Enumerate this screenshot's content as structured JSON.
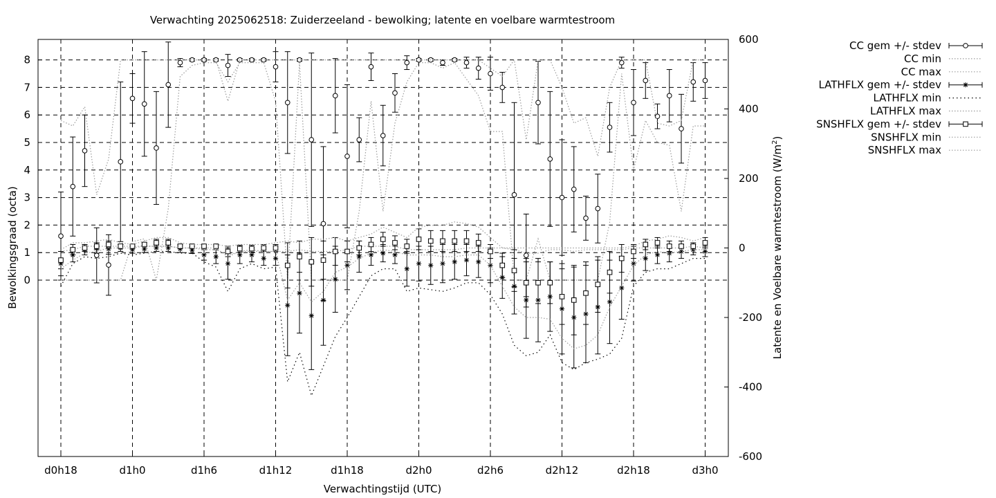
{
  "chart_data": {
    "type": "line",
    "title": "Verwachting 2025062518: Zuiderzeeland - bewolking; latente en voelbare warmtestroom",
    "xlabel": "Verwachtingstijd (UTC)",
    "ylabel": "Bewolkingsgraad (octa)",
    "y2label_main": "Latente en Voelbare warmtestroom (W/m",
    "y2label_sup": "2",
    "y2label_close": ")",
    "xlim": [
      18,
      72
    ],
    "ylim": [
      -6.3,
      8.8
    ],
    "y2lim": [
      -600,
      600
    ],
    "grid": true,
    "legend_position": "outside-right",
    "x_ticks": [
      {
        "value": 18,
        "label": "d0h18"
      },
      {
        "value": 24,
        "label": "d1h0"
      },
      {
        "value": 30,
        "label": "d1h6"
      },
      {
        "value": 36,
        "label": "d1h12"
      },
      {
        "value": 42,
        "label": "d1h18"
      },
      {
        "value": 48,
        "label": "d2h0"
      },
      {
        "value": 54,
        "label": "d2h6"
      },
      {
        "value": 60,
        "label": "d2h12"
      },
      {
        "value": 66,
        "label": "d2h18"
      },
      {
        "value": 72,
        "label": "d3h0"
      }
    ],
    "y_ticks": [
      {
        "value": 0,
        "label": "0"
      },
      {
        "value": 1,
        "label": "1"
      },
      {
        "value": 2,
        "label": "2"
      },
      {
        "value": 3,
        "label": "3"
      },
      {
        "value": 4,
        "label": "4"
      },
      {
        "value": 5,
        "label": "5"
      },
      {
        "value": 6,
        "label": "6"
      },
      {
        "value": 7,
        "label": "7"
      },
      {
        "value": 8,
        "label": "8"
      }
    ],
    "y2_ticks": [
      {
        "value": 600,
        "label": "600"
      },
      {
        "value": 400,
        "label": "400"
      },
      {
        "value": 200,
        "label": "200"
      },
      {
        "value": 0,
        "label": "0"
      },
      {
        "value": -200,
        "label": "-200"
      },
      {
        "value": -400,
        "label": "-400"
      },
      {
        "value": -600,
        "label": "-600"
      }
    ],
    "x": [
      18,
      19,
      20,
      21,
      22,
      23,
      24,
      25,
      26,
      27,
      28,
      29,
      30,
      31,
      32,
      33,
      34,
      35,
      36,
      37,
      38,
      39,
      40,
      41,
      42,
      43,
      44,
      45,
      46,
      47,
      48,
      49,
      50,
      51,
      52,
      53,
      54,
      55,
      56,
      57,
      58,
      59,
      60,
      61,
      62,
      63,
      64,
      65,
      66,
      67,
      68,
      69,
      70,
      71,
      72
    ],
    "series": [
      {
        "name": "CC gem +/- stdev",
        "axis": "y",
        "style": "errorbar",
        "marker": "circle",
        "values": [
          1.6,
          3.4,
          4.7,
          0.9,
          0.55,
          4.3,
          6.6,
          6.4,
          4.8,
          7.1,
          7.9,
          8.0,
          8.0,
          8.0,
          7.8,
          8.0,
          8.0,
          8.0,
          7.75,
          6.45,
          8.0,
          5.1,
          2.05,
          6.7,
          4.5,
          5.1,
          7.75,
          5.25,
          6.8,
          7.9,
          8.0,
          8.0,
          7.9,
          8.0,
          7.9,
          7.7,
          7.5,
          7.0,
          3.1,
          0.9,
          6.45,
          4.4,
          3.0,
          3.3,
          2.25,
          2.6,
          5.55,
          7.9,
          6.45,
          7.25,
          5.95,
          6.7,
          5.5,
          7.2,
          7.25
        ],
        "errors": [
          1.6,
          1.8,
          1.3,
          1.0,
          1.1,
          2.9,
          0.9,
          1.9,
          2.05,
          1.55,
          0.15,
          0.05,
          0.05,
          0.05,
          0.4,
          0.05,
          0.05,
          0.05,
          0.55,
          1.85,
          0.05,
          3.15,
          2.8,
          1.35,
          2.6,
          0.8,
          0.5,
          1.1,
          0.7,
          0.25,
          0.05,
          0.05,
          0.1,
          0.05,
          0.2,
          0.4,
          0.6,
          0.55,
          3.35,
          1.5,
          1.5,
          2.45,
          2.1,
          1.55,
          0.8,
          1.25,
          0.9,
          0.2,
          1.2,
          0.65,
          0.45,
          0.95,
          1.25,
          0.7,
          0.65
        ]
      },
      {
        "name": "CC min",
        "axis": "y",
        "style": "dotted-gray",
        "values": [
          0.0,
          0.0,
          0.0,
          0.0,
          0.0,
          0.0,
          1.4,
          1.5,
          0.0,
          2.6,
          7.4,
          7.8,
          7.9,
          7.9,
          7.2,
          7.9,
          7.9,
          7.9,
          6.5,
          0.0,
          7.9,
          0.0,
          0.0,
          0.0,
          0.0,
          2.5,
          6.5,
          2.5,
          5.7,
          7.2,
          7.9,
          7.9,
          7.7,
          7.9,
          7.3,
          6.7,
          5.4,
          5.4,
          0.0,
          0.0,
          1.5,
          0.0,
          0.0,
          0.0,
          0.0,
          0.0,
          2.1,
          7.5,
          4.0,
          5.8,
          5.0,
          4.9,
          2.5,
          5.6,
          5.6
        ]
      },
      {
        "name": "CC max",
        "axis": "y",
        "style": "dotted-gray",
        "values": [
          5.8,
          5.6,
          6.3,
          3.1,
          4.4,
          8.0,
          8.0,
          8.0,
          8.0,
          8.0,
          8.0,
          8.0,
          8.0,
          8.0,
          6.5,
          8.0,
          8.0,
          8.0,
          8.0,
          8.0,
          8.0,
          8.0,
          8.0,
          8.0,
          8.0,
          8.0,
          8.0,
          8.0,
          8.0,
          8.0,
          8.0,
          8.0,
          8.0,
          8.0,
          8.0,
          8.0,
          7.7,
          7.4,
          8.0,
          5.1,
          8.0,
          8.0,
          7.0,
          5.7,
          5.9,
          4.5,
          7.0,
          8.0,
          8.0,
          8.0,
          5.7,
          5.6,
          5.8,
          8.0,
          8.0
        ]
      },
      {
        "name": "LATHFLX gem +/- stdev",
        "axis": "y2",
        "style": "errorbar",
        "marker": "star",
        "values": [
          -45,
          -20,
          -5,
          0,
          -3,
          0,
          -5,
          -3,
          0,
          0,
          -3,
          -6,
          -20,
          -25,
          -45,
          -20,
          -20,
          -30,
          -30,
          -165,
          -130,
          -195,
          -150,
          -90,
          -50,
          -25,
          -20,
          -15,
          -20,
          -60,
          -45,
          -50,
          -45,
          -40,
          -35,
          -40,
          -50,
          -85,
          -110,
          -150,
          -150,
          -140,
          -175,
          -200,
          -190,
          -170,
          -155,
          -115,
          -45,
          -30,
          -20,
          -15,
          -10,
          -5,
          -10
        ],
        "errors": [
          35,
          20,
          15,
          15,
          15,
          10,
          10,
          10,
          10,
          10,
          10,
          10,
          15,
          20,
          45,
          25,
          20,
          20,
          20,
          145,
          115,
          155,
          130,
          95,
          70,
          45,
          30,
          25,
          25,
          50,
          50,
          55,
          55,
          50,
          45,
          45,
          50,
          60,
          80,
          110,
          120,
          100,
          130,
          145,
          140,
          135,
          120,
          90,
          50,
          35,
          25,
          25,
          20,
          15,
          15
        ]
      },
      {
        "name": "LATHFLX min",
        "axis": "y2",
        "style": "dotted-black",
        "values": [
          -110,
          -45,
          -25,
          -30,
          -25,
          -15,
          -20,
          -15,
          -10,
          -10,
          -15,
          -15,
          -40,
          -55,
          -125,
          -60,
          -45,
          -60,
          -55,
          -385,
          -300,
          -425,
          -340,
          -255,
          -200,
          -140,
          -80,
          -60,
          -60,
          -125,
          -115,
          -120,
          -125,
          -115,
          -100,
          -100,
          -135,
          -190,
          -280,
          -310,
          -300,
          -250,
          -330,
          -350,
          -330,
          -320,
          -305,
          -260,
          -110,
          -70,
          -60,
          -60,
          -45,
          -30,
          -30
        ]
      },
      {
        "name": "LATHFLX max",
        "axis": "y2",
        "style": "dotted-gray",
        "values": [
          -10,
          -5,
          5,
          5,
          5,
          5,
          5,
          5,
          5,
          5,
          0,
          0,
          -5,
          -5,
          -20,
          -10,
          -5,
          -10,
          -10,
          -10,
          -5,
          -10,
          -10,
          -10,
          -5,
          5,
          5,
          5,
          5,
          -5,
          -5,
          -5,
          -5,
          -5,
          0,
          0,
          0,
          0,
          -5,
          -15,
          -15,
          -5,
          -5,
          -10,
          -5,
          -5,
          -5,
          -5,
          0,
          0,
          0,
          0,
          0,
          5,
          0
        ]
      },
      {
        "name": "SNSHFLX gem +/- stdev",
        "axis": "y2",
        "style": "errorbar",
        "marker": "square",
        "values": [
          -35,
          -5,
          0,
          5,
          10,
          5,
          5,
          10,
          15,
          15,
          5,
          5,
          5,
          5,
          -10,
          -2,
          -2,
          0,
          0,
          -50,
          -25,
          -40,
          -35,
          -10,
          -10,
          0,
          10,
          25,
          15,
          5,
          25,
          20,
          20,
          20,
          20,
          15,
          -10,
          -50,
          -65,
          -100,
          -100,
          -100,
          -140,
          -150,
          -130,
          -105,
          -70,
          -30,
          -10,
          10,
          15,
          5,
          5,
          5,
          15
        ],
        "errors": [
          25,
          15,
          10,
          10,
          10,
          5,
          5,
          5,
          10,
          10,
          5,
          5,
          5,
          5,
          15,
          10,
          10,
          10,
          10,
          65,
          45,
          70,
          55,
          40,
          30,
          20,
          20,
          20,
          20,
          20,
          30,
          30,
          30,
          30,
          30,
          25,
          20,
          35,
          60,
          70,
          60,
          60,
          80,
          100,
          90,
          80,
          60,
          40,
          20,
          15,
          15,
          15,
          15,
          10,
          15
        ]
      },
      {
        "name": "SNSHFLX min",
        "axis": "y2",
        "style": "dotted-gray",
        "values": [
          -60,
          -35,
          -15,
          -10,
          0,
          0,
          0,
          5,
          5,
          5,
          0,
          0,
          0,
          0,
          -25,
          -10,
          -10,
          -10,
          -10,
          -150,
          -100,
          -155,
          -125,
          -70,
          -55,
          -30,
          -15,
          -5,
          -10,
          -20,
          -20,
          -20,
          -25,
          -25,
          -20,
          -20,
          -50,
          -110,
          -170,
          -200,
          -200,
          -205,
          -260,
          -290,
          -280,
          -250,
          -170,
          -110,
          -50,
          -20,
          -10,
          -15,
          -10,
          -5,
          -5
        ]
      },
      {
        "name": "SNSHFLX max",
        "axis": "y2",
        "style": "dotted-gray",
        "values": [
          -5,
          15,
          15,
          20,
          25,
          15,
          10,
          20,
          30,
          30,
          15,
          10,
          10,
          10,
          5,
          10,
          10,
          10,
          15,
          20,
          15,
          25,
          25,
          30,
          20,
          30,
          40,
          60,
          45,
          30,
          60,
          65,
          65,
          75,
          70,
          60,
          30,
          0,
          0,
          0,
          0,
          0,
          0,
          0,
          0,
          0,
          0,
          0,
          5,
          20,
          25,
          35,
          30,
          20,
          30
        ]
      }
    ]
  }
}
